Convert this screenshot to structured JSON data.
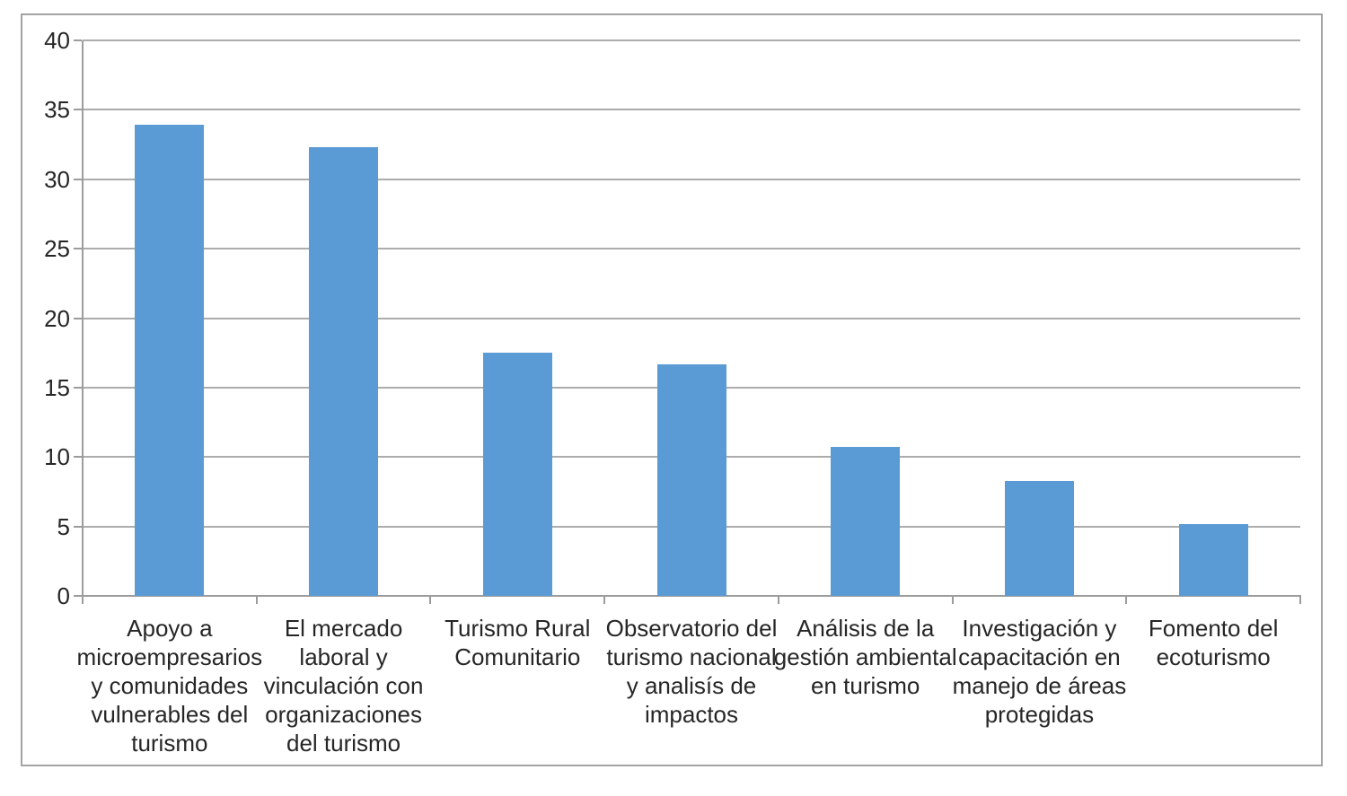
{
  "chart_data": {
    "type": "bar",
    "title": "",
    "xlabel": "",
    "ylabel": "",
    "categories": [
      "Apoyo a microempresarios y comunidades vulnerables del turismo",
      "El mercado laboral y vinculación con organizaciones del turismo",
      "Turismo Rural Comunitario",
      "Observatorio del turismo nacional y analisís de impactos",
      "Análisis de la gestión ambiental en turismo",
      "Investigación y capacitación en manejo de áreas protegidas",
      "Fomento del ecoturismo"
    ],
    "values": [
      33.9,
      32.3,
      17.5,
      16.7,
      10.7,
      8.3,
      5.2
    ],
    "x_tick_labels_display": [
      "Apoyo a\nmicroempresarios\ny comunidades\nvulnerables del\nturismo",
      "El mercado\nlaboral y\nvinculación con\norganizaciones\ndel turismo",
      "Turismo Rural\nComunitario",
      "Observatorio del\nturismo nacional\ny analisís de\nimpactos",
      "Análisis de la\ngestión ambiental\nen turismo",
      "Investigación y\ncapacitación en\nmanejo de áreas\nprotegidas",
      "Fomento del\necoturismo"
    ],
    "y_tick_labels": [
      "40",
      "35",
      "30",
      "25",
      "20",
      "15",
      "10",
      "5",
      "0"
    ],
    "ylim": [
      0,
      40
    ],
    "y_tick_step": 5,
    "grid": true,
    "legend_position": "none",
    "series_name": "",
    "bar_color": "#5b9bd5"
  },
  "colors": {
    "bar": "#5b9bd5",
    "gridline": "#acacac",
    "axis": "#9c9c9c",
    "frame_border": "#a3a3a3",
    "text": "#262626",
    "background": "#ffffff"
  }
}
